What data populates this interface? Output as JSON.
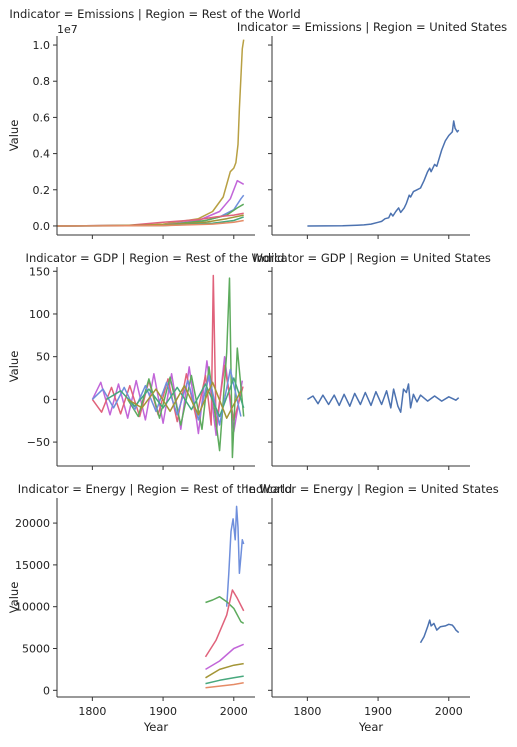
{
  "figure": {
    "x_axis_label": "Year",
    "y_axis_label": "Value",
    "x_tick_labels": [
      "1800",
      "1900",
      "2000"
    ]
  },
  "chart_data": [
    {
      "type": "line",
      "title": "Indicator = Emissions | Region = Rest of the World",
      "xlabel": "",
      "ylabel": "Value",
      "xlim": [
        1750,
        2030
      ],
      "ylim": [
        -0.05,
        1.05
      ],
      "y_multiplier": "1e7",
      "y_ticks": [
        0.0,
        0.2,
        0.4,
        0.6,
        0.8,
        1.0
      ],
      "y_tick_labels": [
        "0.0",
        "0.2",
        "0.4",
        "0.6",
        "0.8",
        "1.0"
      ],
      "x_ticks": [
        1800,
        1900,
        2000
      ],
      "grid": false,
      "series": [
        {
          "color": "#b8a043",
          "x": [
            1750,
            1850,
            1900,
            1950,
            1970,
            1985,
            1995,
            2000,
            2003,
            2006,
            2008,
            2010,
            2012,
            2014
          ],
          "y": [
            0,
            0.002,
            0.01,
            0.04,
            0.08,
            0.16,
            0.3,
            0.32,
            0.35,
            0.45,
            0.65,
            0.82,
            0.98,
            1.03
          ]
        },
        {
          "color": "#c266d9",
          "x": [
            1750,
            1900,
            1950,
            1980,
            1995,
            2005,
            2014
          ],
          "y": [
            0,
            0.005,
            0.03,
            0.08,
            0.15,
            0.25,
            0.23
          ]
        },
        {
          "color": "#6f8fdc",
          "x": [
            1750,
            1900,
            1950,
            1980,
            2000,
            2010,
            2014
          ],
          "y": [
            0,
            0.003,
            0.02,
            0.05,
            0.09,
            0.15,
            0.17
          ]
        },
        {
          "color": "#5dab5d",
          "x": [
            1750,
            1900,
            1960,
            1990,
            2005,
            2014
          ],
          "y": [
            0,
            0.004,
            0.03,
            0.06,
            0.1,
            0.12
          ]
        },
        {
          "color": "#e0627b",
          "x": [
            1750,
            1850,
            1900,
            1950,
            1975,
            2000,
            2014
          ],
          "y": [
            0,
            0.003,
            0.02,
            0.035,
            0.05,
            0.06,
            0.07
          ]
        },
        {
          "color": "#a39536",
          "x": [
            1750,
            1900,
            1960,
            1990,
            2014
          ],
          "y": [
            0,
            0.005,
            0.02,
            0.04,
            0.06
          ]
        },
        {
          "color": "#47a87d",
          "x": [
            1750,
            1900,
            1970,
            2000,
            2014
          ],
          "y": [
            0,
            0.002,
            0.015,
            0.03,
            0.05
          ]
        },
        {
          "color": "#e58b66",
          "x": [
            1750,
            1900,
            1970,
            2000,
            2014
          ],
          "y": [
            0,
            0.002,
            0.01,
            0.02,
            0.03
          ]
        }
      ]
    },
    {
      "type": "line",
      "title": "Indicator = Emissions | Region = United States",
      "xlabel": "",
      "ylabel": "",
      "xlim": [
        1750,
        2030
      ],
      "ylim": [
        -0.05,
        1.05
      ],
      "x_ticks": [
        1800,
        1900,
        2000
      ],
      "y_ticks": [
        0.0,
        0.2,
        0.4,
        0.6,
        0.8,
        1.0
      ],
      "grid": false,
      "series": [
        {
          "color": "#4c72b0",
          "x": [
            1800,
            1850,
            1870,
            1880,
            1890,
            1900,
            1905,
            1910,
            1915,
            1918,
            1921,
            1925,
            1929,
            1932,
            1937,
            1940,
            1944,
            1946,
            1950,
            1955,
            1960,
            1965,
            1970,
            1973,
            1975,
            1980,
            1983,
            1990,
            1995,
            2000,
            2005,
            2007,
            2009,
            2012,
            2014
          ],
          "y": [
            0,
            0.001,
            0.004,
            0.006,
            0.01,
            0.02,
            0.025,
            0.04,
            0.045,
            0.07,
            0.055,
            0.08,
            0.1,
            0.075,
            0.1,
            0.125,
            0.17,
            0.16,
            0.19,
            0.2,
            0.21,
            0.25,
            0.3,
            0.32,
            0.3,
            0.34,
            0.33,
            0.42,
            0.47,
            0.5,
            0.52,
            0.58,
            0.54,
            0.52,
            0.53
          ]
        }
      ]
    },
    {
      "type": "line",
      "title": "Indicator = GDP | Region = Rest of the World",
      "xlabel": "",
      "ylabel": "Value",
      "xlim": [
        1750,
        2030
      ],
      "ylim": [
        -78,
        155
      ],
      "y_ticks": [
        -50,
        0,
        50,
        100,
        150
      ],
      "y_tick_labels": [
        "−50",
        "0",
        "50",
        "100",
        "150"
      ],
      "x_ticks": [
        1800,
        1900,
        2000
      ],
      "grid": false,
      "series": [
        {
          "color": "#c266d9",
          "x": [
            1800,
            1812,
            1825,
            1837,
            1850,
            1862,
            1875,
            1887,
            1900,
            1912,
            1925,
            1937,
            1950,
            1962,
            1975,
            1987,
            2000,
            2012
          ],
          "y": [
            0,
            20,
            -18,
            18,
            -22,
            22,
            -24,
            30,
            -28,
            30,
            -35,
            38,
            -40,
            45,
            -42,
            50,
            -38,
            22
          ]
        },
        {
          "color": "#e0627b",
          "x": [
            1800,
            1813,
            1827,
            1840,
            1853,
            1867,
            1880,
            1893,
            1907,
            1920,
            1933,
            1947,
            1960,
            1968,
            1971,
            1975,
            1987,
            2000,
            2013
          ],
          "y": [
            0,
            -15,
            14,
            -17,
            16,
            -20,
            22,
            -18,
            24,
            -26,
            30,
            -22,
            28,
            -30,
            145,
            -32,
            40,
            -25,
            15
          ]
        },
        {
          "color": "#5dab5d",
          "x": [
            1850,
            1865,
            1880,
            1895,
            1910,
            1925,
            1940,
            1955,
            1965,
            1980,
            1990,
            1994,
            1998,
            2005,
            2014
          ],
          "y": [
            0,
            -20,
            24,
            -22,
            26,
            -30,
            28,
            -35,
            38,
            -60,
            55,
            142,
            -68,
            60,
            -20
          ]
        },
        {
          "color": "#6f8fdc",
          "x": [
            1800,
            1815,
            1830,
            1845,
            1860,
            1875,
            1890,
            1905,
            1920,
            1935,
            1950,
            1965,
            1980,
            1995,
            2010
          ],
          "y": [
            0,
            12,
            -10,
            14,
            -12,
            16,
            -14,
            20,
            -18,
            22,
            -24,
            28,
            -30,
            35,
            -20
          ]
        },
        {
          "color": "#47a87d",
          "x": [
            1820,
            1840,
            1860,
            1880,
            1900,
            1920,
            1940,
            1960,
            1980,
            2000,
            2014
          ],
          "y": [
            0,
            10,
            -8,
            12,
            -10,
            14,
            -12,
            18,
            -20,
            25,
            -10
          ]
        },
        {
          "color": "#a39536",
          "x": [
            1850,
            1870,
            1890,
            1910,
            1930,
            1950,
            1970,
            1990,
            2010
          ],
          "y": [
            0,
            -10,
            12,
            -14,
            16,
            -18,
            20,
            -22,
            10
          ]
        }
      ]
    },
    {
      "type": "line",
      "title": "Indicator = GDP | Region = United States",
      "xlabel": "",
      "ylabel": "",
      "xlim": [
        1750,
        2030
      ],
      "ylim": [
        -78,
        155
      ],
      "x_ticks": [
        1800,
        1900,
        2000
      ],
      "y_ticks": [
        -50,
        0,
        50,
        100,
        150
      ],
      "grid": false,
      "series": [
        {
          "color": "#4c72b0",
          "x": [
            1800,
            1808,
            1815,
            1822,
            1830,
            1838,
            1845,
            1852,
            1860,
            1867,
            1875,
            1882,
            1890,
            1897,
            1905,
            1912,
            1918,
            1922,
            1928,
            1932,
            1936,
            1940,
            1943,
            1946,
            1950,
            1955,
            1960,
            1970,
            1980,
            1990,
            2000,
            2010,
            2014
          ],
          "y": [
            0,
            4,
            -5,
            5,
            -6,
            5,
            -7,
            6,
            -8,
            7,
            -6,
            8,
            -7,
            9,
            -6,
            10,
            -10,
            12,
            -8,
            -15,
            12,
            8,
            18,
            -10,
            6,
            -3,
            5,
            -2,
            4,
            -2,
            3,
            -1,
            2
          ]
        }
      ]
    },
    {
      "type": "line",
      "title": "Indicator = Energy | Region = Rest of the World",
      "xlabel": "Year",
      "ylabel": "Value",
      "xlim": [
        1750,
        2030
      ],
      "ylim": [
        -800,
        23000
      ],
      "y_ticks": [
        0,
        5000,
        10000,
        15000,
        20000
      ],
      "y_tick_labels": [
        "0",
        "5000",
        "10000",
        "15000",
        "20000"
      ],
      "x_ticks": [
        1800,
        1900,
        2000
      ],
      "x_tick_labels": [
        "1800",
        "1900",
        "2000"
      ],
      "grid": false,
      "series": [
        {
          "color": "#6f8fdc",
          "x": [
            1990,
            1993,
            1996,
            1999,
            2002,
            2004,
            2006,
            2008,
            2010,
            2012,
            2014
          ],
          "y": [
            10000,
            14000,
            19000,
            20500,
            18000,
            22000,
            19500,
            14000,
            16000,
            18000,
            17500
          ]
        },
        {
          "color": "#5dab5d",
          "x": [
            1960,
            1970,
            1980,
            1990,
            2000,
            2010,
            2014
          ],
          "y": [
            10500,
            10800,
            11200,
            10600,
            9800,
            8200,
            8000
          ]
        },
        {
          "color": "#e0627b",
          "x": [
            1960,
            1975,
            1990,
            1998,
            2005,
            2014
          ],
          "y": [
            4000,
            6000,
            9000,
            12000,
            11000,
            9500
          ]
        },
        {
          "color": "#c266d9",
          "x": [
            1960,
            1980,
            2000,
            2014
          ],
          "y": [
            2500,
            3500,
            5000,
            5500
          ]
        },
        {
          "color": "#a39536",
          "x": [
            1960,
            1980,
            2000,
            2014
          ],
          "y": [
            1500,
            2500,
            3000,
            3200
          ]
        },
        {
          "color": "#47a87d",
          "x": [
            1960,
            1980,
            2000,
            2014
          ],
          "y": [
            800,
            1200,
            1500,
            1700
          ]
        },
        {
          "color": "#e58b66",
          "x": [
            1960,
            1980,
            2000,
            2014
          ],
          "y": [
            300,
            500,
            700,
            900
          ]
        }
      ]
    },
    {
      "type": "line",
      "title": "Indicator = Energy | Region = United States",
      "xlabel": "Year",
      "ylabel": "",
      "xlim": [
        1750,
        2030
      ],
      "ylim": [
        -800,
        23000
      ],
      "x_ticks": [
        1800,
        1900,
        2000
      ],
      "x_tick_labels": [
        "1800",
        "1900",
        "2000"
      ],
      "y_ticks": [
        0,
        5000,
        10000,
        15000,
        20000
      ],
      "grid": false,
      "series": [
        {
          "color": "#4c72b0",
          "x": [
            1960,
            1965,
            1970,
            1973,
            1975,
            1979,
            1983,
            1988,
            1995,
            2000,
            2005,
            2008,
            2010,
            2014
          ],
          "y": [
            5700,
            6400,
            7600,
            8400,
            7700,
            8000,
            7200,
            7600,
            7700,
            7900,
            7800,
            7500,
            7200,
            6900
          ]
        }
      ]
    }
  ]
}
